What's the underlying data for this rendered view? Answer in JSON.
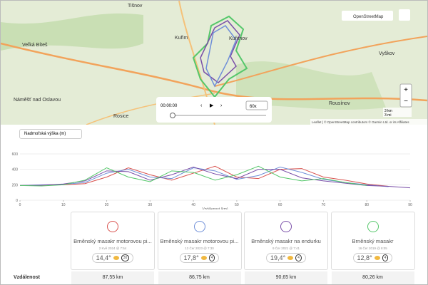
{
  "map": {
    "labels": [
      "Tišnov",
      "Kuřim",
      "Kuřimov",
      "Veľká Bíteš",
      "Náměšť nad Oslavou",
      "Rosice",
      "Vyškov",
      "Rousínov"
    ],
    "layer": "OpenStreetMap",
    "scale_km": "3 km",
    "scale_mi": "3 mi",
    "attribution": "Leaflet | © OpenStreetMap contributors © Garmin Ltd. or its Affiliates",
    "player_time": "00:00:00",
    "player_speed": "60x"
  },
  "elevation_chart": {
    "type": "line",
    "dropdown": "Nadmořská výška (m)",
    "x_label": "Vzdálenost (km)",
    "x": [
      0,
      5,
      10,
      15,
      20,
      25,
      30,
      35,
      40,
      45,
      50,
      55,
      60,
      65,
      70,
      75,
      80,
      85,
      90
    ],
    "xlim": [
      0,
      90
    ],
    "xticks": [
      0,
      10,
      20,
      30,
      40,
      50,
      60,
      70,
      80,
      90
    ],
    "ylim": [
      0,
      600
    ],
    "yticks": [
      0,
      200,
      400,
      600
    ],
    "series": [
      {
        "color": "#d9534f",
        "values": [
          190,
          195,
          200,
          215,
          300,
          420,
          330,
          260,
          350,
          440,
          300,
          280,
          400,
          410,
          300,
          260,
          210,
          180,
          null
        ]
      },
      {
        "color": "#6f8fd8",
        "values": [
          190,
          200,
          205,
          230,
          350,
          400,
          300,
          280,
          420,
          380,
          270,
          320,
          430,
          360,
          270,
          230,
          200,
          175,
          null
        ]
      },
      {
        "color": "#7a4fa8",
        "values": [
          190,
          195,
          210,
          250,
          380,
          370,
          260,
          330,
          430,
          340,
          280,
          400,
          400,
          290,
          250,
          220,
          190,
          180,
          160
        ]
      },
      {
        "color": "#55c76a",
        "values": [
          190,
          185,
          200,
          260,
          420,
          300,
          240,
          380,
          360,
          260,
          330,
          440,
          300,
          250,
          280,
          230,
          190,
          null,
          null
        ]
      }
    ]
  },
  "comparison": {
    "row_label": "Vzdálenost",
    "cards": [
      {
        "color": "#d9534f",
        "title": "Brněnský masakr motorovou pi...",
        "date": "2 Kvě 2024 @ 7:54",
        "temperature": "14,4°",
        "wind": "30",
        "distance": "87,55 km"
      },
      {
        "color": "#6f8fd8",
        "title": "Brněnský masakr motorovou pi...",
        "date": "13 Čer 2023 @ 7:30",
        "temperature": "17,8°",
        "wind": "4",
        "distance": "86,75 km"
      },
      {
        "color": "#7a4fa8",
        "title": "Brněnský masakr na endurku",
        "date": "9 Čer 2021 @ 7:41",
        "temperature": "19,4°",
        "wind": "4",
        "distance": "90,65 km"
      },
      {
        "color": "#55c76a",
        "title": "Brněnský masakr",
        "date": "16 Čer 2019 @ 8:05",
        "temperature": "12,8°",
        "wind": "4",
        "distance": "80,26 km"
      }
    ]
  }
}
